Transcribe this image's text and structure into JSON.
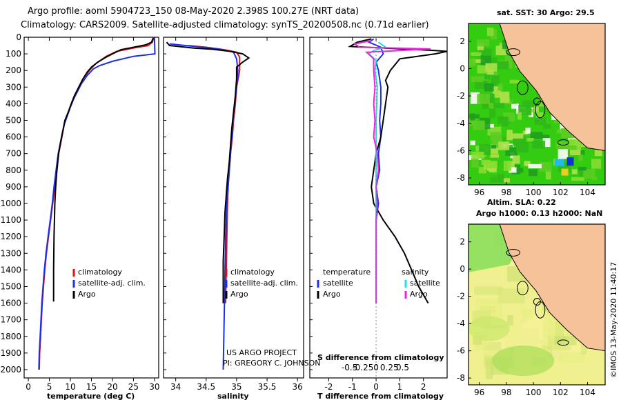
{
  "header": {
    "title1": "Argo profile: aoml 5904723_150 08-May-2020 2.398S 100.27E (NRT data)",
    "title2": "Climatology: CARS2009. Satellite-adjusted climatology: synTS_20200508.nc (0.71d earlier)"
  },
  "colors": {
    "argo": "#000000",
    "clim": "#dd1111",
    "sat": "#1a2ee8",
    "sat_sal": "#22dddd",
    "argo_sal": "#ee22dd",
    "land": "#f5c29a",
    "sst_green": "#33cc11",
    "sla_bg": "#f0f090"
  },
  "chart_data": [
    {
      "type": "line",
      "name": "temperature",
      "xlabel": "temperature (deg C)",
      "xlim": [
        -1,
        31
      ],
      "ylim": [
        2050,
        0
      ],
      "xticks": [
        0,
        5,
        10,
        15,
        20,
        25,
        30
      ],
      "yticks": [
        0,
        100,
        200,
        300,
        400,
        500,
        600,
        700,
        800,
        900,
        1000,
        1100,
        1200,
        1300,
        1400,
        1500,
        1600,
        1700,
        1800,
        1900,
        2000
      ],
      "legend": [
        "climatology",
        "satellite-adj. clim.",
        "Argo"
      ],
      "series": [
        {
          "name": "climatology",
          "color": "clim",
          "points": [
            [
              29.8,
              5
            ],
            [
              29.5,
              30
            ],
            [
              28.5,
              50
            ],
            [
              25,
              65
            ],
            [
              21,
              85
            ],
            [
              18.5,
              115
            ],
            [
              16,
              160
            ],
            [
              14.5,
              200
            ],
            [
              13,
              250
            ],
            [
              12,
              300
            ],
            [
              11,
              350
            ],
            [
              10.2,
              400
            ],
            [
              9.5,
              450
            ],
            [
              8.7,
              500
            ],
            [
              8,
              600
            ],
            [
              7.2,
              700
            ],
            [
              6.8,
              800
            ],
            [
              6.3,
              900
            ],
            [
              5.8,
              1000
            ],
            [
              5.3,
              1100
            ],
            [
              4.8,
              1200
            ],
            [
              4.3,
              1300
            ],
            [
              3.9,
              1400
            ],
            [
              3.6,
              1500
            ],
            [
              3.3,
              1600
            ],
            [
              3.1,
              1700
            ],
            [
              2.9,
              1800
            ],
            [
              2.7,
              1900
            ],
            [
              2.6,
              2000
            ]
          ]
        },
        {
          "name": "satellite-adj. clim.",
          "color": "sat",
          "points": [
            [
              29.5,
              5
            ],
            [
              30,
              10
            ],
            [
              30.1,
              100
            ],
            [
              25,
              115
            ],
            [
              20,
              145
            ],
            [
              17,
              170
            ],
            [
              15.5,
              190
            ],
            [
              14,
              230
            ],
            [
              12.6,
              280
            ],
            [
              11.6,
              330
            ],
            [
              10.8,
              370
            ],
            [
              10,
              420
            ],
            [
              9.3,
              470
            ],
            [
              8.6,
              520
            ],
            [
              7.9,
              600
            ],
            [
              7.1,
              700
            ],
            [
              6.6,
              800
            ],
            [
              6.1,
              900
            ],
            [
              5.7,
              1000
            ],
            [
              5.2,
              1100
            ],
            [
              4.7,
              1200
            ],
            [
              4.2,
              1300
            ],
            [
              3.8,
              1400
            ],
            [
              3.5,
              1500
            ],
            [
              3.2,
              1600
            ],
            [
              3.0,
              1700
            ],
            [
              2.8,
              1800
            ],
            [
              2.6,
              1900
            ],
            [
              2.5,
              2000
            ]
          ]
        },
        {
          "name": "Argo",
          "color": "argo",
          "points": [
            [
              29.8,
              5
            ],
            [
              29.5,
              15
            ],
            [
              29.3,
              30
            ],
            [
              28,
              45
            ],
            [
              26,
              55
            ],
            [
              22,
              75
            ],
            [
              20,
              100
            ],
            [
              18.5,
              120
            ],
            [
              16.5,
              150
            ],
            [
              15,
              180
            ],
            [
              14,
              210
            ],
            [
              13,
              250
            ],
            [
              12,
              300
            ],
            [
              11,
              350
            ],
            [
              10.2,
              400
            ],
            [
              9.5,
              450
            ],
            [
              8.7,
              500
            ],
            [
              7.9,
              600
            ],
            [
              7.2,
              700
            ],
            [
              6.8,
              800
            ],
            [
              6.5,
              900
            ],
            [
              6.3,
              1000
            ],
            [
              6.2,
              1100
            ],
            [
              6.1,
              1200
            ],
            [
              6.05,
              1300
            ],
            [
              6,
              1400
            ],
            [
              6,
              1500
            ],
            [
              6,
              1590
            ]
          ]
        }
      ]
    },
    {
      "type": "line",
      "name": "salinity",
      "xlabel": "salinity",
      "xlim": [
        33.8,
        36.1
      ],
      "ylim": [
        2050,
        0
      ],
      "xticks": [
        34,
        34.5,
        35,
        35.5,
        36
      ],
      "legend": [
        "climatology",
        "satellite-adj. clim.",
        "Argo"
      ],
      "series": [
        {
          "name": "climatology",
          "color": "clim",
          "points": [
            [
              34.2,
              50
            ],
            [
              34.5,
              60
            ],
            [
              34.8,
              75
            ],
            [
              35.0,
              90
            ],
            [
              35.05,
              120
            ],
            [
              35.05,
              200
            ],
            [
              35.0,
              300
            ],
            [
              34.98,
              400
            ],
            [
              34.95,
              500
            ],
            [
              34.93,
              600
            ],
            [
              34.9,
              700
            ],
            [
              34.88,
              800
            ],
            [
              34.86,
              900
            ],
            [
              34.85,
              1000
            ],
            [
              34.84,
              1200
            ],
            [
              34.83,
              1400
            ],
            [
              34.82,
              1600
            ]
          ]
        },
        {
          "name": "satellite-adj. clim.",
          "color": "sat",
          "points": [
            [
              33.9,
              40
            ],
            [
              34.3,
              55
            ],
            [
              34.7,
              70
            ],
            [
              34.95,
              90
            ],
            [
              35.0,
              130
            ],
            [
              35.02,
              200
            ],
            [
              35.0,
              300
            ],
            [
              34.97,
              400
            ],
            [
              34.94,
              500
            ],
            [
              34.92,
              600
            ],
            [
              34.9,
              700
            ],
            [
              34.88,
              800
            ],
            [
              34.86,
              900
            ],
            [
              34.84,
              1000
            ],
            [
              34.82,
              1200
            ],
            [
              34.81,
              1400
            ],
            [
              34.8,
              1600
            ],
            [
              34.79,
              1800
            ],
            [
              34.78,
              2000
            ]
          ]
        },
        {
          "name": "Argo",
          "color": "argo",
          "points": [
            [
              33.85,
              30
            ],
            [
              33.9,
              50
            ],
            [
              34.3,
              65
            ],
            [
              34.6,
              72
            ],
            [
              34.9,
              85
            ],
            [
              35.1,
              100
            ],
            [
              35.2,
              125
            ],
            [
              35.1,
              150
            ],
            [
              35.0,
              180
            ],
            [
              35.0,
              250
            ],
            [
              34.98,
              350
            ],
            [
              34.95,
              450
            ],
            [
              34.92,
              550
            ],
            [
              34.9,
              650
            ],
            [
              34.88,
              750
            ],
            [
              34.85,
              850
            ],
            [
              34.83,
              950
            ],
            [
              34.81,
              1050
            ],
            [
              34.8,
              1150
            ],
            [
              34.79,
              1250
            ],
            [
              34.78,
              1350
            ],
            [
              34.78,
              1450
            ],
            [
              34.78,
              1600
            ]
          ]
        }
      ]
    },
    {
      "type": "line",
      "name": "difference from climatology",
      "xlabel": "T difference from climatology",
      "xlabel_s": "S difference from climatology",
      "xlim": [
        -2.8,
        3.0
      ],
      "ylim": [
        2050,
        0
      ],
      "xticks": [
        -2,
        -1,
        0,
        1,
        2
      ],
      "s_ticks": [
        -0.5,
        -0.25,
        0,
        0.25,
        0.5
      ],
      "legend": {
        "left_title": "temperature",
        "right_title": "salinity",
        "left": [
          "satellite",
          "Argo"
        ],
        "right": [
          "satellite",
          "Argo"
        ]
      },
      "series": [
        {
          "name": "T satellite",
          "color": "sat",
          "points": [
            [
              -0.1,
              10
            ],
            [
              -0.3,
              30
            ],
            [
              0.2,
              60
            ],
            [
              0.3,
              100
            ],
            [
              0.0,
              150
            ],
            [
              0.1,
              200
            ],
            [
              0.2,
              300
            ],
            [
              0.2,
              400
            ],
            [
              0.15,
              500
            ],
            [
              0.2,
              600
            ],
            [
              0.1,
              700
            ],
            [
              0.15,
              800
            ],
            [
              0.0,
              900
            ],
            [
              0.1,
              1000
            ],
            [
              0.0,
              1100
            ],
            [
              0.0,
              1200
            ],
            [
              0.0,
              1400
            ],
            [
              0.0,
              1600
            ]
          ]
        },
        {
          "name": "T Argo",
          "color": "argo",
          "points": [
            [
              -0.2,
              10
            ],
            [
              -0.8,
              30
            ],
            [
              -1.1,
              55
            ],
            [
              2.5,
              80
            ],
            [
              3.0,
              85
            ],
            [
              2.5,
              100
            ],
            [
              1.0,
              130
            ],
            [
              0.6,
              200
            ],
            [
              0.4,
              260
            ],
            [
              0.5,
              300
            ],
            [
              0.4,
              400
            ],
            [
              0.3,
              500
            ],
            [
              0.2,
              600
            ],
            [
              0.0,
              700
            ],
            [
              -0.1,
              800
            ],
            [
              -0.2,
              900
            ],
            [
              -0.1,
              1000
            ],
            [
              0.3,
              1100
            ],
            [
              0.8,
              1200
            ],
            [
              1.2,
              1300
            ],
            [
              1.5,
              1400
            ],
            [
              1.8,
              1500
            ],
            [
              2.2,
              1600
            ]
          ]
        },
        {
          "name": "S satellite",
          "color": "sat_sal",
          "points": [
            [
              0.1,
              30
            ],
            [
              0.4,
              60
            ],
            [
              -0.1,
              80
            ],
            [
              -0.3,
              100
            ],
            [
              0.0,
              140
            ],
            [
              -0.05,
              200
            ],
            [
              0.05,
              300
            ],
            [
              0.0,
              500
            ],
            [
              0.0,
              800
            ],
            [
              0.0,
              1100
            ],
            [
              0.0,
              1400
            ],
            [
              0.0,
              1600
            ]
          ]
        },
        {
          "name": "S Argo",
          "color": "argo_sal",
          "points": [
            [
              -0.2,
              20
            ],
            [
              -0.9,
              40
            ],
            [
              -0.7,
              60
            ],
            [
              2.3,
              70
            ],
            [
              -0.4,
              90
            ],
            [
              -0.1,
              130
            ],
            [
              -0.1,
              200
            ],
            [
              -0.05,
              300
            ],
            [
              -0.1,
              400
            ],
            [
              -0.05,
              500
            ],
            [
              -0.1,
              600
            ],
            [
              0.05,
              700
            ],
            [
              0.1,
              800
            ],
            [
              0.0,
              900
            ],
            [
              0.05,
              1000
            ],
            [
              0.0,
              1100
            ],
            [
              0.0,
              1300
            ],
            [
              0.0,
              1600
            ]
          ]
        }
      ]
    },
    {
      "type": "heatmap",
      "name": "sst map",
      "title": "sat. SST: 30 Argo: 29.5",
      "xlim": [
        95.2,
        105.3
      ],
      "ylim": [
        -8.5,
        3.3
      ],
      "xticks": [
        96,
        98,
        100,
        102,
        104
      ],
      "yticks": [
        2,
        0,
        -2,
        -4,
        -6,
        -8
      ],
      "argo_position": [
        100.27,
        -2.398
      ]
    },
    {
      "type": "heatmap",
      "name": "sla map",
      "title": "Altim. SLA: 0.22",
      "subtitle": "Argo h1000: 0.13 h2000: NaN",
      "xlim": [
        95.2,
        105.3
      ],
      "ylim": [
        -8.5,
        3.3
      ],
      "xticks": [
        96,
        98,
        100,
        102,
        104
      ],
      "yticks": [
        2,
        0,
        -2,
        -4,
        -6,
        -8
      ],
      "argo_position": [
        100.27,
        -2.398
      ]
    }
  ],
  "annotations": {
    "project_line1": "US ARGO PROJECT",
    "project_line2": "PI: GREGORY C. JOHNSON",
    "imos": "©IMOS 13-May-2020 11:40:17"
  }
}
